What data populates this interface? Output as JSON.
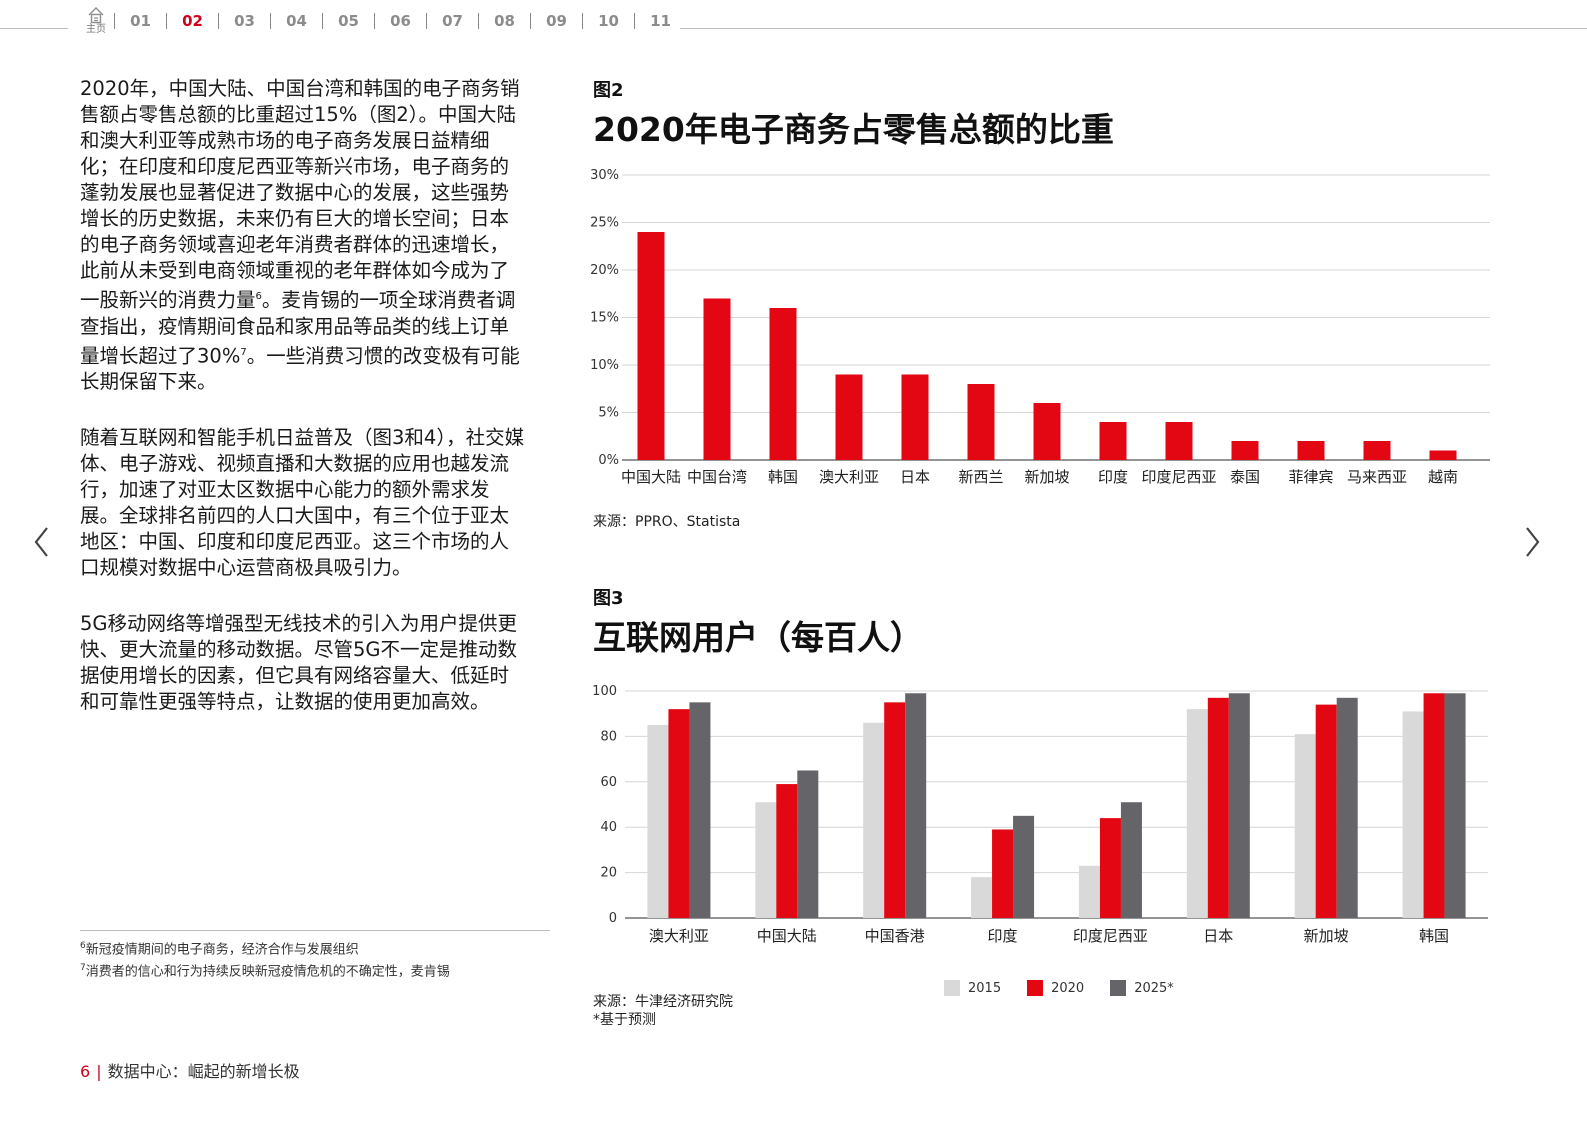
{
  "nav": {
    "home_label": "主页",
    "items": [
      "01",
      "02",
      "03",
      "04",
      "05",
      "06",
      "07",
      "08",
      "09",
      "10",
      "11"
    ],
    "active_index": 1
  },
  "body": {
    "p1_a": "2020年，中国大陆、中国台湾和韩国的电子商务销售额占零售总额的比重超过15%（图2）。中国大陆和澳大利亚等成熟市场的电子商务发展日益精细化；在印度和印度尼西亚等新兴市场，电子商务的蓬勃发展也显著促进了数据中心的发展，这些强势增长的历史数据，未来仍有巨大的增长空间；日本的电子商务领域喜迎老年消费者群体的迅速增长，此前从未受到电商领域重视的老年群体如今成为了一股新兴的消费力量",
    "p1_sup1": "6",
    "p1_b": "。麦肯锡的一项全球消费者调查指出，疫情期间食品和家用品等品类的线上订单量增长超过了30%",
    "p1_sup2": "7",
    "p1_c": "。一些消费习惯的改变极有可能长期保留下来。",
    "p2": "随着互联网和智能手机日益普及（图3和4），社交媒体、电子游戏、视频直播和大数据的应用也越发流行，加速了对亚太区数据中心能力的额外需求发展。全球排名前四的人口大国中，有三个位于亚太地区：中国、印度和印度尼西亚。这三个市场的人口规模对数据中心运营商极具吸引力。",
    "p3": "5G移动网络等增强型无线技术的引入为用户提供更快、更大流量的移动数据。尽管5G不一定是推动数据使用增长的因素，但它具有网络容量大、低延时和可靠性更强等特点，让数据的使用更加高效。"
  },
  "footnotes": [
    {
      "sup": "6",
      "text": "新冠疫情期间的电子商务，经济合作与发展组织"
    },
    {
      "sup": "7",
      "text": "消费者的信心和行为持续反映新冠疫情危机的不确定性，麦肯锡"
    }
  ],
  "footer": {
    "page": "6",
    "title": "数据中心：崛起的新增长极"
  },
  "fig2": {
    "label": "图2",
    "title": "2020年电子商务占零售总额的比重",
    "source": "来源：PPRO、Statista"
  },
  "fig3": {
    "label": "图3",
    "title": "互联网用户（每百人）",
    "source": "来源：牛津经济研究院",
    "note": "*基于预测"
  },
  "chart_data": [
    {
      "type": "bar",
      "categories": [
        "中国大陆",
        "中国台湾",
        "韩国",
        "澳大利亚",
        "日本",
        "新西兰",
        "新加坡",
        "印度",
        "印度尼西亚",
        "泰国",
        "菲律宾",
        "马来西亚",
        "越南"
      ],
      "values": [
        24,
        17,
        16,
        9,
        9,
        8,
        6,
        4,
        4,
        2,
        2,
        2,
        1
      ],
      "yticks": [
        "0%",
        "5%",
        "10%",
        "15%",
        "20%",
        "25%",
        "30%"
      ],
      "ylim": [
        0,
        30
      ],
      "grid": true,
      "color": "#e30613"
    },
    {
      "type": "bar",
      "categories": [
        "澳大利亚",
        "中国大陆",
        "中国香港",
        "印度",
        "印度尼西亚",
        "日本",
        "新加坡",
        "韩国"
      ],
      "series": [
        {
          "name": "2015",
          "values": [
            85,
            51,
            86,
            18,
            23,
            92,
            81,
            91
          ],
          "color": "#d9d9d9"
        },
        {
          "name": "2020",
          "values": [
            92,
            59,
            95,
            39,
            44,
            97,
            94,
            99
          ],
          "color": "#e30613"
        },
        {
          "name": "2025*",
          "values": [
            95,
            65,
            99,
            45,
            51,
            99,
            97,
            99
          ],
          "color": "#646469"
        }
      ],
      "yticks": [
        "0",
        "20",
        "40",
        "60",
        "80",
        "100"
      ],
      "ylim": [
        0,
        100
      ],
      "grid": true,
      "legend": "bottom"
    }
  ]
}
